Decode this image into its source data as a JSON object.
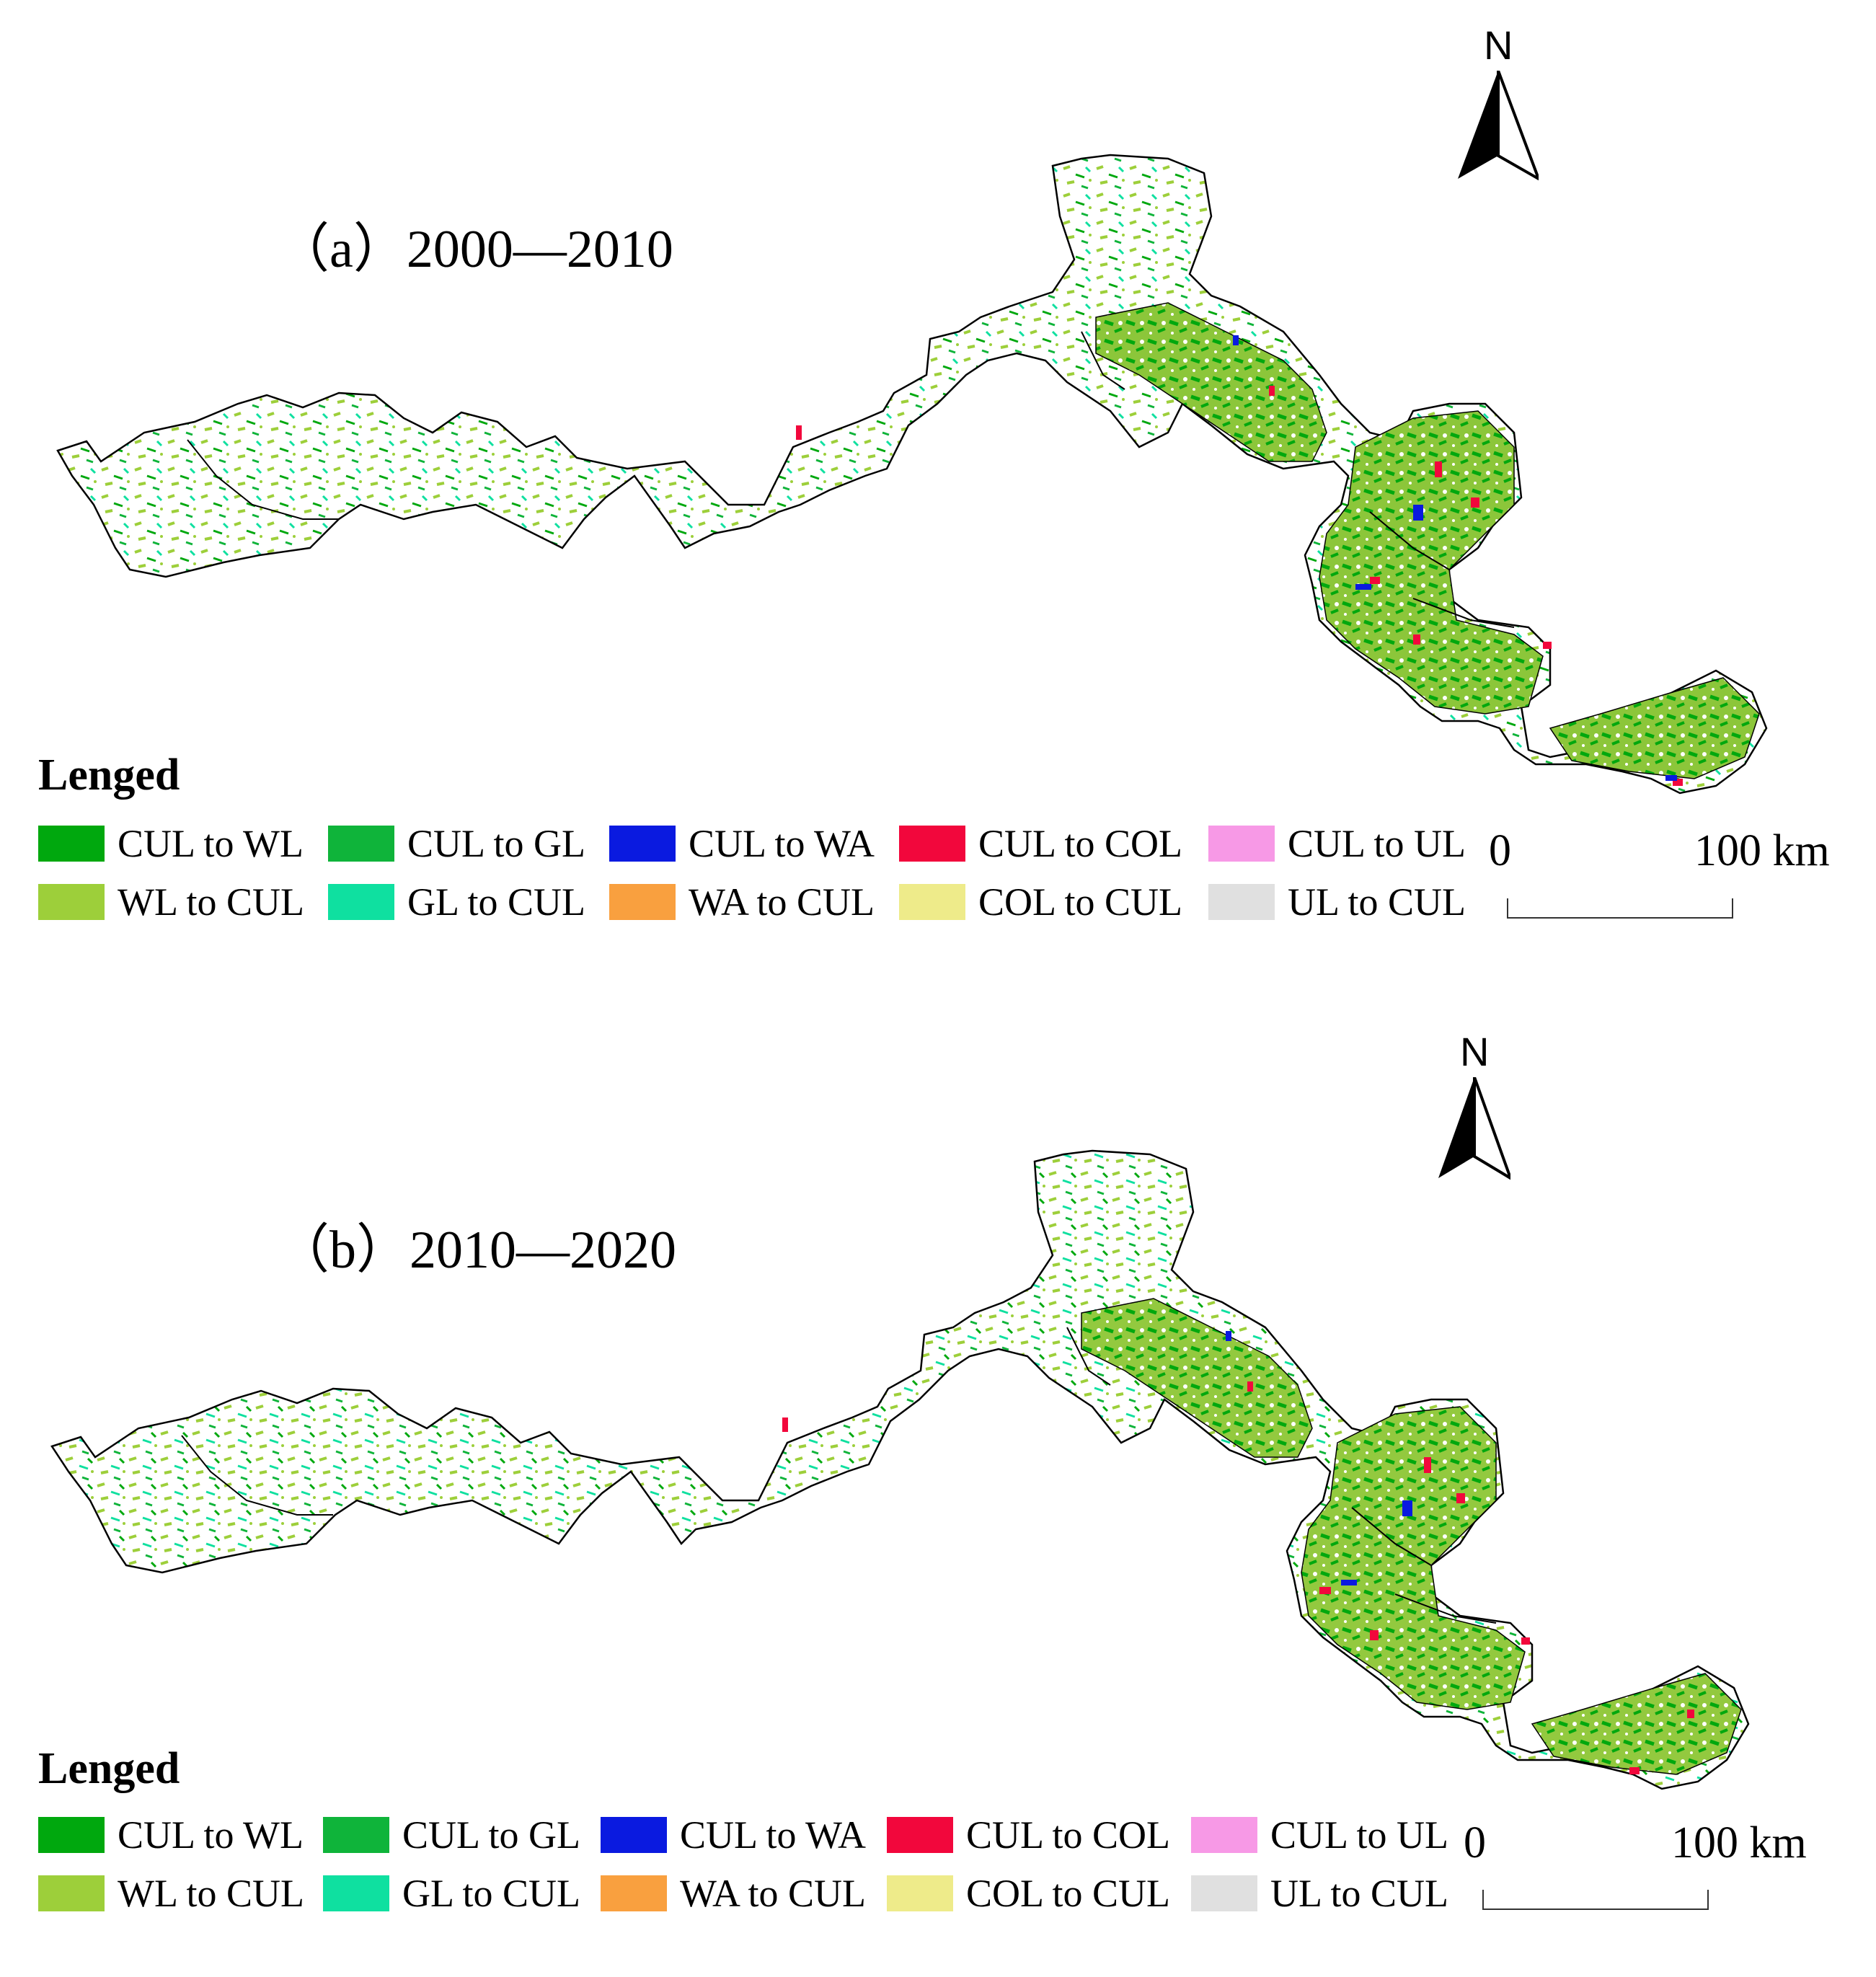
{
  "panels": [
    {
      "title": "（a）2000—2010",
      "legend_heading": "Lenged",
      "north_label": "N",
      "scale": {
        "start": "0",
        "end": "100 km"
      }
    },
    {
      "title": "（b）2010—2020",
      "legend_heading": "Lenged",
      "north_label": "N",
      "scale": {
        "start": "0",
        "end": "100 km"
      }
    }
  ],
  "legend": [
    {
      "label": "CUL to WL",
      "color": "#00a80e"
    },
    {
      "label": "CUL to GL",
      "color": "#0fb43a"
    },
    {
      "label": "CUL to WA",
      "color": "#0a1ae0"
    },
    {
      "label": "CUL to COL",
      "color": "#f2073c"
    },
    {
      "label": "CUL to UL",
      "color": "#f799e6"
    },
    {
      "label": "WL to CUL",
      "color": "#9dcf3a"
    },
    {
      "label": "GL to CUL",
      "color": "#0fe0a0"
    },
    {
      "label": "WA to CUL",
      "color": "#f9a03f"
    },
    {
      "label": "COL to CUL",
      "color": "#eeeb8a"
    },
    {
      "label": "UL to CUL",
      "color": "#e0e0e0"
    }
  ]
}
